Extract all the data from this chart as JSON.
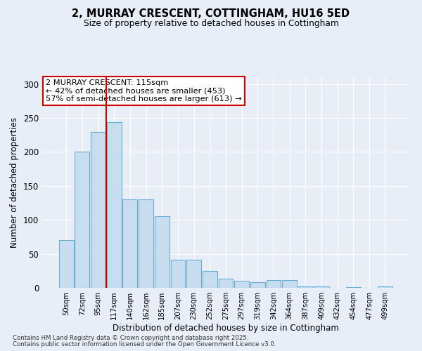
{
  "title": "2, MURRAY CRESCENT, COTTINGHAM, HU16 5ED",
  "subtitle": "Size of property relative to detached houses in Cottingham",
  "xlabel": "Distribution of detached houses by size in Cottingham",
  "ylabel": "Number of detached properties",
  "footnote1": "Contains HM Land Registry data © Crown copyright and database right 2025.",
  "footnote2": "Contains public sector information licensed under the Open Government Licence v3.0.",
  "categories": [
    "50sqm",
    "72sqm",
    "95sqm",
    "117sqm",
    "140sqm",
    "162sqm",
    "185sqm",
    "207sqm",
    "230sqm",
    "252sqm",
    "275sqm",
    "297sqm",
    "319sqm",
    "342sqm",
    "364sqm",
    "387sqm",
    "409sqm",
    "432sqm",
    "454sqm",
    "477sqm",
    "499sqm"
  ],
  "values": [
    70,
    200,
    229,
    244,
    130,
    130,
    105,
    41,
    41,
    25,
    13,
    10,
    8,
    11,
    11,
    2,
    2,
    0,
    1,
    0,
    2
  ],
  "bar_color": "#c8ddf0",
  "bar_edge_color": "#6aaed6",
  "background_color": "#e8eef8",
  "grid_color": "#ffffff",
  "vline_x": 2.5,
  "vline_color": "#cc0000",
  "annotation_text": "2 MURRAY CRESCENT: 115sqm\n← 42% of detached houses are smaller (453)\n57% of semi-detached houses are larger (613) →",
  "annotation_box_facecolor": "#ffffff",
  "annotation_box_edgecolor": "#cc0000",
  "ylim": [
    0,
    310
  ],
  "yticks": [
    0,
    50,
    100,
    150,
    200,
    250,
    300
  ]
}
